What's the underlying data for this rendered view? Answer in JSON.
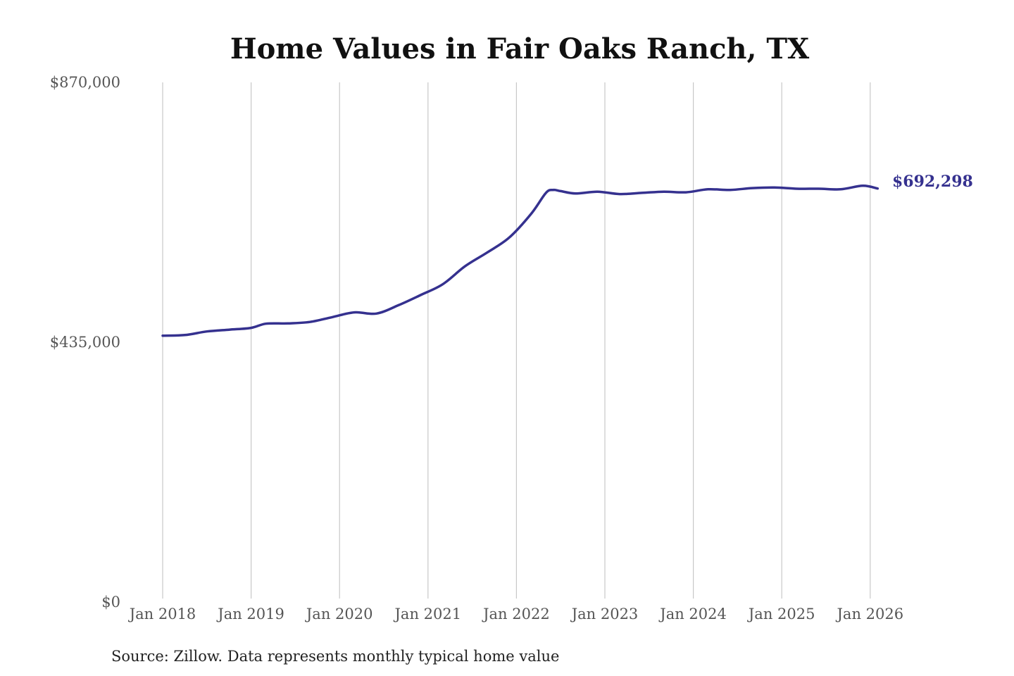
{
  "colors": {
    "series": "#35318f",
    "background": "#ffffff"
  },
  "chart_data": {
    "type": "line",
    "title": "Home Values in Fair Oaks Ranch, TX",
    "xlabel": "",
    "ylabel": "",
    "ylim": [
      0,
      870000
    ],
    "y_ticks": [
      {
        "value": 0,
        "label": "$0"
      },
      {
        "value": 435000,
        "label": "$435,000"
      },
      {
        "value": 870000,
        "label": "$870,000"
      }
    ],
    "x_range": [
      "2018-01",
      "2026-02"
    ],
    "x_ticks": [
      {
        "date": "2018-01",
        "label": "Jan 2018"
      },
      {
        "date": "2019-01",
        "label": "Jan 2019"
      },
      {
        "date": "2020-01",
        "label": "Jan 2020"
      },
      {
        "date": "2021-01",
        "label": "Jan 2021"
      },
      {
        "date": "2022-01",
        "label": "Jan 2022"
      },
      {
        "date": "2023-01",
        "label": "Jan 2023"
      },
      {
        "date": "2024-01",
        "label": "Jan 2024"
      },
      {
        "date": "2025-01",
        "label": "Jan 2025"
      },
      {
        "date": "2026-01",
        "label": "Jan 2026"
      }
    ],
    "grid": "vertical",
    "series": [
      {
        "x": [
          "2018-01",
          "2018-04",
          "2018-07",
          "2018-10",
          "2019-01",
          "2019-03",
          "2019-06",
          "2019-09",
          "2019-12",
          "2020-03",
          "2020-06",
          "2020-09",
          "2020-12",
          "2021-03",
          "2021-06",
          "2021-09",
          "2021-12",
          "2022-03",
          "2022-05",
          "2022-06",
          "2022-07",
          "2022-09",
          "2022-12",
          "2023-03",
          "2023-06",
          "2023-09",
          "2023-12",
          "2024-03",
          "2024-06",
          "2024-09",
          "2024-12",
          "2025-03",
          "2025-06",
          "2025-09",
          "2025-12",
          "2026-02"
        ],
        "y": [
          446000,
          447000,
          453000,
          456000,
          459000,
          466000,
          466500,
          469000,
          477000,
          485000,
          483000,
          497000,
          514000,
          532000,
          562000,
          585000,
          610000,
          650000,
          685000,
          690000,
          688000,
          684000,
          687000,
          683000,
          685000,
          687000,
          686000,
          691000,
          690000,
          693000,
          694000,
          692000,
          692000,
          691000,
          697000,
          692298
        ]
      }
    ],
    "end_label": "$692,298",
    "source": "Source: Zillow. Data represents monthly typical home value"
  }
}
